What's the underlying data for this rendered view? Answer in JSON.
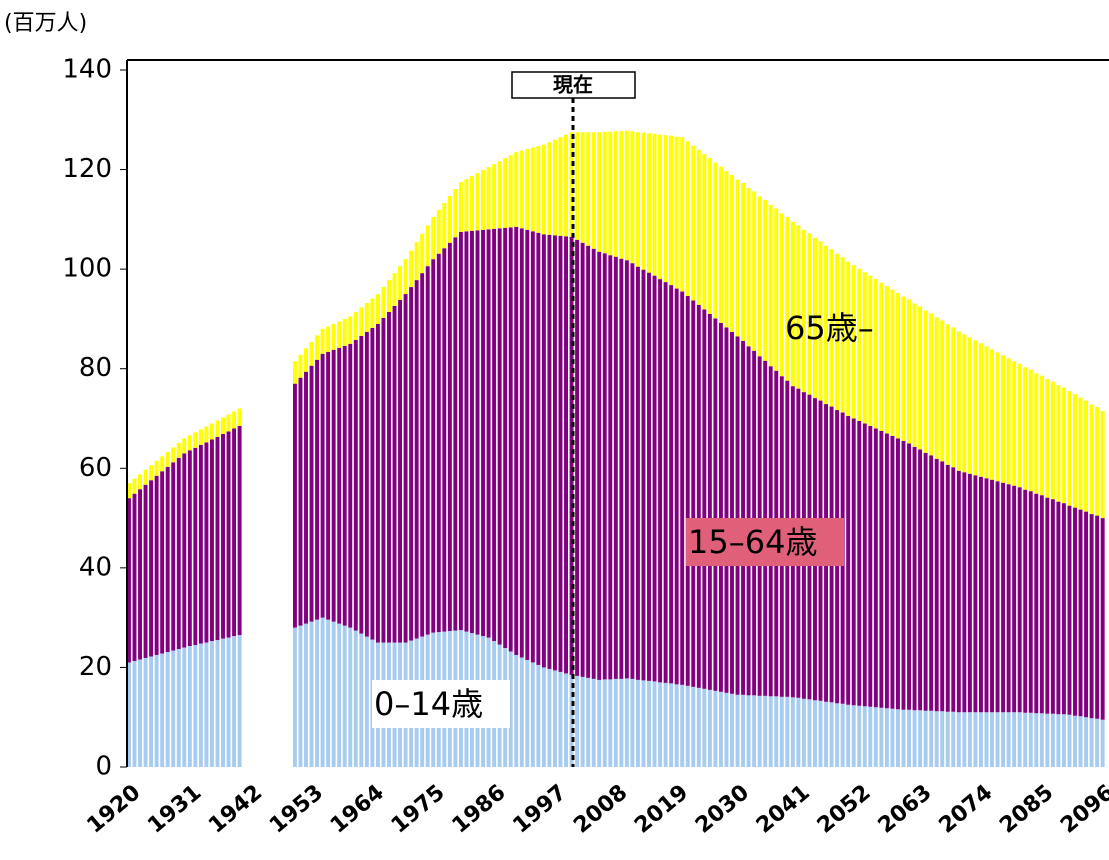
{
  "chart_data": {
    "type": "bar",
    "stacked": true,
    "y_unit": "(百万人)",
    "now_label": "現在",
    "categories": [
      "1920",
      null,
      null,
      null,
      null,
      null,
      null,
      null,
      null,
      null,
      null,
      "1931",
      null,
      null,
      null,
      null,
      null,
      null,
      null,
      null,
      null,
      null,
      "1942",
      null,
      null,
      null,
      null,
      null,
      null,
      null,
      null,
      null,
      null,
      "1953",
      null,
      null,
      null,
      null,
      null,
      null,
      null,
      null,
      null,
      null,
      "1964",
      null,
      null,
      null,
      null,
      null,
      null,
      null,
      null,
      null,
      null,
      "1975",
      null,
      null,
      null,
      null,
      null,
      null,
      null,
      null,
      null,
      null,
      "1986",
      null,
      null,
      null,
      null,
      null,
      null,
      null,
      null,
      null,
      null,
      "1997",
      null,
      null,
      null,
      null,
      null,
      null,
      null,
      null,
      null,
      null,
      "2008",
      null,
      null,
      null,
      null,
      null,
      null,
      null,
      null,
      null,
      null,
      "2019",
      null,
      null,
      null,
      null,
      null,
      null,
      null,
      null,
      null,
      null,
      "2030",
      null,
      null,
      null,
      null,
      null,
      null,
      null,
      null,
      null,
      null,
      "2041",
      null,
      null,
      null,
      null,
      null,
      null,
      null,
      null,
      null,
      null,
      "2052",
      null,
      null,
      null,
      null,
      null,
      null,
      null,
      null,
      null,
      null,
      "2063",
      null,
      null,
      null,
      null,
      null,
      null,
      null,
      null,
      null,
      null,
      "2074",
      null,
      null,
      null,
      null,
      null,
      null,
      null,
      null,
      null,
      null,
      "2085",
      null,
      null,
      null,
      null,
      null,
      null,
      null,
      null,
      null,
      null,
      "2096"
    ],
    "series": [
      {
        "name": "0–14歳",
        "color": "#a8ccf0",
        "values": [
          21,
          21.3,
          21.6,
          21.9,
          22.2,
          22.5,
          22.8,
          23.1,
          23.4,
          23.7,
          24,
          24.3,
          24.5,
          24.8,
          25,
          25.3,
          25.5,
          25.8,
          26,
          26.3,
          26.5,
          null,
          null,
          null,
          null,
          null,
          null,
          null,
          null,
          null,
          28,
          28.4,
          28.8,
          29.2,
          29.6,
          30,
          29.6,
          29.2,
          28.8,
          28.4,
          28,
          27.4,
          26.8,
          26.2,
          25.6,
          25,
          25,
          25,
          25,
          25,
          25,
          25.4,
          25.8,
          26.2,
          26.6,
          27,
          27.1,
          27.2,
          27.3,
          27.4,
          27.5,
          27.2,
          26.9,
          26.6,
          26.3,
          26,
          25.3,
          24.6,
          23.9,
          23.2,
          22.5,
          22,
          21.5,
          21,
          20.5,
          20,
          19.7,
          19.4,
          19.1,
          18.8,
          18.5,
          18.3,
          18.1,
          17.9,
          17.7,
          17.5,
          17.6,
          17.6,
          17.7,
          17.7,
          17.8,
          17.7,
          17.5,
          17.4,
          17.3,
          17.2,
          17,
          16.9,
          16.8,
          16.6,
          16.5,
          16.3,
          16.1,
          15.9,
          15.7,
          15.5,
          15.3,
          15.1,
          14.9,
          14.7,
          14.5,
          14.5,
          14.4,
          14.4,
          14.3,
          14.3,
          14.2,
          14.2,
          14.1,
          14.1,
          14,
          13.9,
          13.7,
          13.6,
          13.4,
          13.3,
          13.1,
          13,
          12.8,
          12.7,
          12.5,
          12.4,
          12.3,
          12.2,
          12.1,
          12,
          11.9,
          11.8,
          11.7,
          11.6,
          11.5,
          11.5,
          11.4,
          11.4,
          11.3,
          11.3,
          11.2,
          11.2,
          11.1,
          11.1,
          11,
          11,
          11,
          11,
          11,
          11,
          11,
          11,
          11,
          11,
          11,
          11,
          10.9,
          10.9,
          10.8,
          10.8,
          10.7,
          10.7,
          10.6,
          10.6,
          10.5,
          10.3,
          10.2,
          10,
          9.8,
          9.7,
          9.5
        ]
      },
      {
        "name": "15–64歳",
        "color": "#800080",
        "values": [
          33,
          33.6,
          34.2,
          34.8,
          35.4,
          36,
          36.6,
          37.2,
          37.8,
          38.4,
          39,
          39.3,
          39.6,
          39.9,
          40.2,
          40.5,
          40.8,
          41.1,
          41.4,
          41.7,
          42,
          null,
          null,
          null,
          null,
          null,
          null,
          null,
          null,
          null,
          49,
          49.8,
          50.6,
          51.4,
          52.2,
          53,
          53.8,
          54.6,
          55.4,
          56.2,
          57,
          58.4,
          59.8,
          61.2,
          62.6,
          64,
          65.2,
          66.4,
          67.6,
          68.8,
          70,
          71,
          72,
          73,
          74,
          75,
          76,
          77,
          78,
          79,
          80,
          80.4,
          80.8,
          81.2,
          81.6,
          82,
          82.8,
          83.6,
          84.4,
          85.2,
          86,
          86.2,
          86.4,
          86.6,
          86.8,
          87,
          87.2,
          87.4,
          87.6,
          87.8,
          88,
          87.6,
          87.2,
          86.8,
          86.4,
          86,
          85.6,
          85.2,
          84.8,
          84.4,
          84,
          83.5,
          83,
          82.5,
          82,
          81.5,
          81,
          80.5,
          80,
          79.5,
          79,
          78.3,
          77.6,
          76.9,
          76.2,
          75.5,
          74.8,
          74.1,
          73.4,
          72.7,
          72,
          71.1,
          70.1,
          69.2,
          68.2,
          67.3,
          66.3,
          65.4,
          64.4,
          63.5,
          62.5,
          62.1,
          61.6,
          61.2,
          60.7,
          60.3,
          59.8,
          59.4,
          58.9,
          58.5,
          58,
          57.6,
          57.2,
          56.8,
          56.4,
          56,
          55.6,
          55.2,
          54.8,
          54.4,
          54,
          53.5,
          52.9,
          52.4,
          51.8,
          51.3,
          50.7,
          50.2,
          49.6,
          49.1,
          48.5,
          48.2,
          47.9,
          47.6,
          47.3,
          47,
          46.7,
          46.4,
          46.1,
          45.8,
          45.5,
          45.2,
          44.8,
          44.5,
          44.1,
          43.8,
          43.4,
          43.1,
          42.7,
          42.4,
          42,
          41.8,
          41.5,
          41.3,
          41,
          40.8,
          40.5
        ]
      },
      {
        "name": "65歳–",
        "color": "#ffff00",
        "values": [
          3,
          3,
          3,
          3,
          3,
          3,
          3,
          3,
          3,
          3,
          3,
          3,
          3.1,
          3.1,
          3.2,
          3.2,
          3.3,
          3.3,
          3.4,
          3.4,
          3.5,
          null,
          null,
          null,
          null,
          null,
          null,
          null,
          null,
          null,
          4.5,
          4.6,
          4.7,
          4.8,
          4.9,
          5,
          5.1,
          5.2,
          5.3,
          5.4,
          5.5,
          5.6,
          5.7,
          5.8,
          5.9,
          6,
          6.2,
          6.4,
          6.6,
          6.8,
          7,
          7.3,
          7.6,
          7.9,
          8.2,
          8.5,
          8.8,
          9.1,
          9.4,
          9.7,
          10,
          10.5,
          11,
          11.5,
          12,
          12.5,
          13,
          13.5,
          14,
          14.5,
          15,
          15.6,
          16.2,
          16.8,
          17.4,
          18,
          18.6,
          19.2,
          19.8,
          20.4,
          21,
          21.6,
          22.2,
          22.8,
          23.4,
          24,
          24.4,
          24.8,
          25.2,
          25.6,
          26,
          26.5,
          27,
          27.5,
          28,
          28.5,
          29,
          29.5,
          30,
          30.5,
          31,
          31.1,
          31.1,
          31.2,
          31.2,
          31.3,
          31.3,
          31.4,
          31.4,
          31.5,
          31.5,
          31.7,
          31.8,
          32,
          32.1,
          32.3,
          32.4,
          32.6,
          32.7,
          32.9,
          33,
          32.8,
          32.6,
          32.4,
          32.2,
          32,
          31.8,
          31.6,
          31.4,
          31.2,
          31,
          30.8,
          30.6,
          30.4,
          30.2,
          30,
          29.8,
          29.6,
          29.4,
          29.2,
          29,
          28.9,
          28.8,
          28.7,
          28.6,
          28.5,
          28.4,
          28.3,
          28.2,
          28.1,
          28,
          27.7,
          27.4,
          27.1,
          26.8,
          26.5,
          26.2,
          25.9,
          25.6,
          25.3,
          25,
          24.8,
          24.6,
          24.4,
          24.2,
          24,
          23.8,
          23.6,
          23.4,
          23.2,
          23,
          22.8,
          22.5,
          22.3,
          22,
          21.8,
          21.5
        ]
      }
    ],
    "ylim": [
      0,
      140
    ],
    "yticks": [
      0,
      20,
      40,
      60,
      80,
      100,
      120,
      140
    ],
    "grid": false
  }
}
